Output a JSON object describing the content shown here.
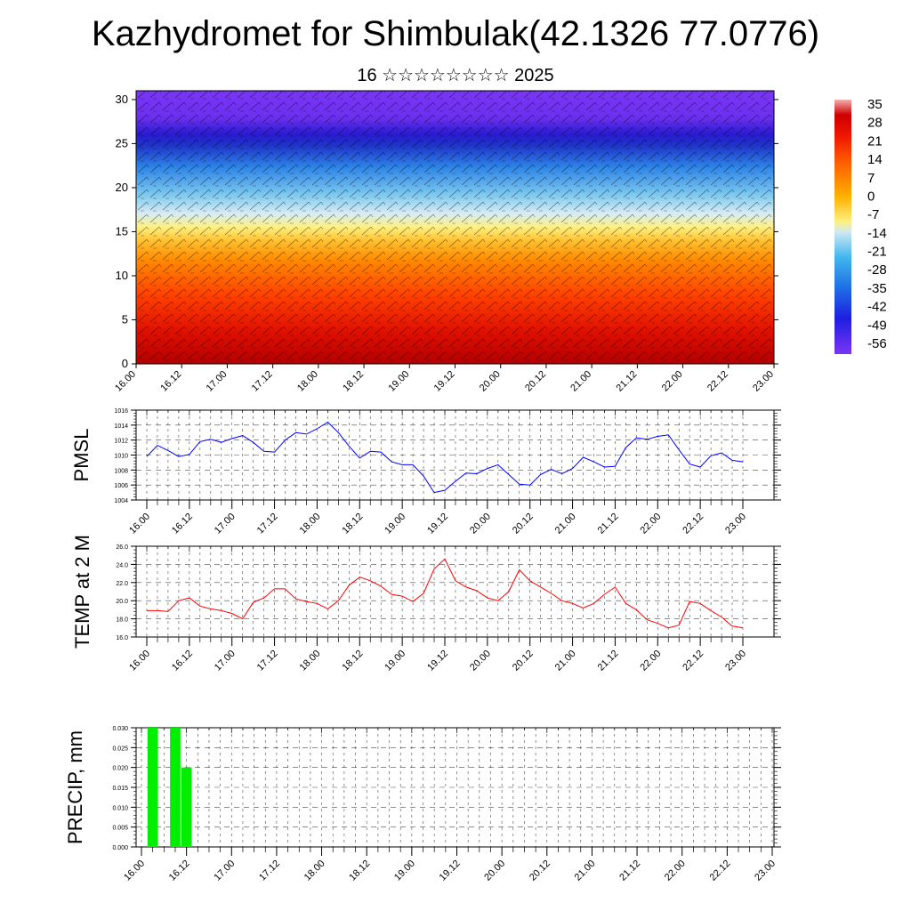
{
  "title": "Kazhydromet for Shimbulak(42.1326 77.0776)",
  "subtitle": "16 ☆☆☆☆☆☆☆☆ 2025",
  "x_ticks": [
    "16.00",
    "16.12",
    "17.00",
    "17.12",
    "18.00",
    "18.12",
    "19.00",
    "19.12",
    "20.00",
    "20.12",
    "21.00",
    "21.12",
    "22.00",
    "22.12",
    "23.00"
  ],
  "colors": {
    "pmsl": "#0000ff",
    "temp": "#ff0000",
    "precip": "#00ee00"
  },
  "chart_data": [
    {
      "type": "heatmap",
      "ylim": [
        0,
        31
      ],
      "y_ticks": [
        0,
        5,
        10,
        15,
        20,
        25,
        30
      ],
      "colorbar": {
        "labels": [
          "35",
          "28",
          "21",
          "14",
          "7",
          "0",
          "-7",
          "-14",
          "-21",
          "-28",
          "-35",
          "-42",
          "-49",
          "-56"
        ],
        "range": [
          -60,
          38
        ]
      },
      "x_ticks": [
        "16.00",
        "16.12",
        "17.00",
        "17.12",
        "18.00",
        "18.12",
        "19.00",
        "19.12",
        "20.00",
        "20.12",
        "21.00",
        "21.12",
        "22.00",
        "22.12",
        "23.00"
      ]
    },
    {
      "type": "line",
      "ylabel": "PMSL",
      "ylim": [
        1004,
        1016
      ],
      "y_ticks": [
        "1004",
        "1006",
        "1008",
        "1010",
        "1012",
        "1014",
        "1016"
      ],
      "x_step_hours": 3,
      "series": [
        {
          "values": [
            1009.8,
            1011.3,
            1010.6,
            1009.8,
            1010.1,
            1011.8,
            1012.1,
            1011.7,
            1012.2,
            1012.6,
            1011.7,
            1010.5,
            1010.4,
            1012.0,
            1013.0,
            1012.8,
            1013.5,
            1014.4,
            1013.0,
            1011.2,
            1009.6,
            1010.5,
            1010.4,
            1009.1,
            1008.7,
            1008.7,
            1007.2,
            1005.0,
            1005.3,
            1006.5,
            1007.6,
            1007.5,
            1008.2,
            1008.7,
            1007.4,
            1006.1,
            1006.0,
            1007.4,
            1008.1,
            1007.5,
            1008.2,
            1009.7,
            1009.1,
            1008.4,
            1008.5,
            1011.0,
            1012.3,
            1012.1,
            1012.5,
            1012.7,
            1010.7,
            1008.8,
            1008.4,
            1009.9,
            1010.3,
            1009.3,
            1009.1
          ]
        }
      ]
    },
    {
      "type": "line",
      "ylabel": "TEMP at 2 M",
      "ylim": [
        16,
        26
      ],
      "y_ticks": [
        "16.0",
        "18.0",
        "20.0",
        "22.0",
        "24.0",
        "26.0"
      ],
      "x_step_hours": 3,
      "series": [
        {
          "values": [
            18.9,
            18.9,
            18.8,
            20.0,
            20.3,
            19.4,
            19.1,
            18.9,
            18.6,
            18.0,
            19.8,
            20.3,
            21.3,
            21.3,
            20.2,
            19.9,
            19.7,
            19.1,
            20.0,
            21.7,
            22.6,
            22.2,
            21.6,
            20.7,
            20.5,
            19.9,
            20.8,
            23.5,
            24.6,
            22.2,
            21.5,
            21.1,
            20.3,
            20.0,
            21.0,
            23.4,
            22.2,
            21.5,
            20.8,
            20.0,
            19.7,
            19.2,
            19.7,
            20.7,
            21.5,
            19.7,
            19.0,
            17.9,
            17.5,
            17.0,
            17.3,
            19.9,
            19.7,
            18.9,
            18.2,
            17.2,
            17.0
          ]
        }
      ]
    },
    {
      "type": "bar",
      "ylabel": "PRECIP, mm",
      "ylim": [
        0,
        0.03
      ],
      "y_ticks": [
        "0.000",
        "0.005",
        "0.010",
        "0.015",
        "0.020",
        "0.025",
        "0.030"
      ],
      "x_step_hours": 3,
      "values": [
        0,
        0.03,
        0,
        0.03,
        0.02,
        0,
        0,
        0,
        0,
        0,
        0,
        0,
        0,
        0,
        0,
        0,
        0,
        0,
        0,
        0,
        0,
        0,
        0,
        0,
        0,
        0,
        0,
        0,
        0,
        0,
        0,
        0,
        0,
        0,
        0,
        0,
        0,
        0,
        0,
        0,
        0,
        0,
        0,
        0,
        0,
        0,
        0,
        0,
        0,
        0,
        0,
        0,
        0,
        0,
        0,
        0,
        0
      ]
    }
  ]
}
